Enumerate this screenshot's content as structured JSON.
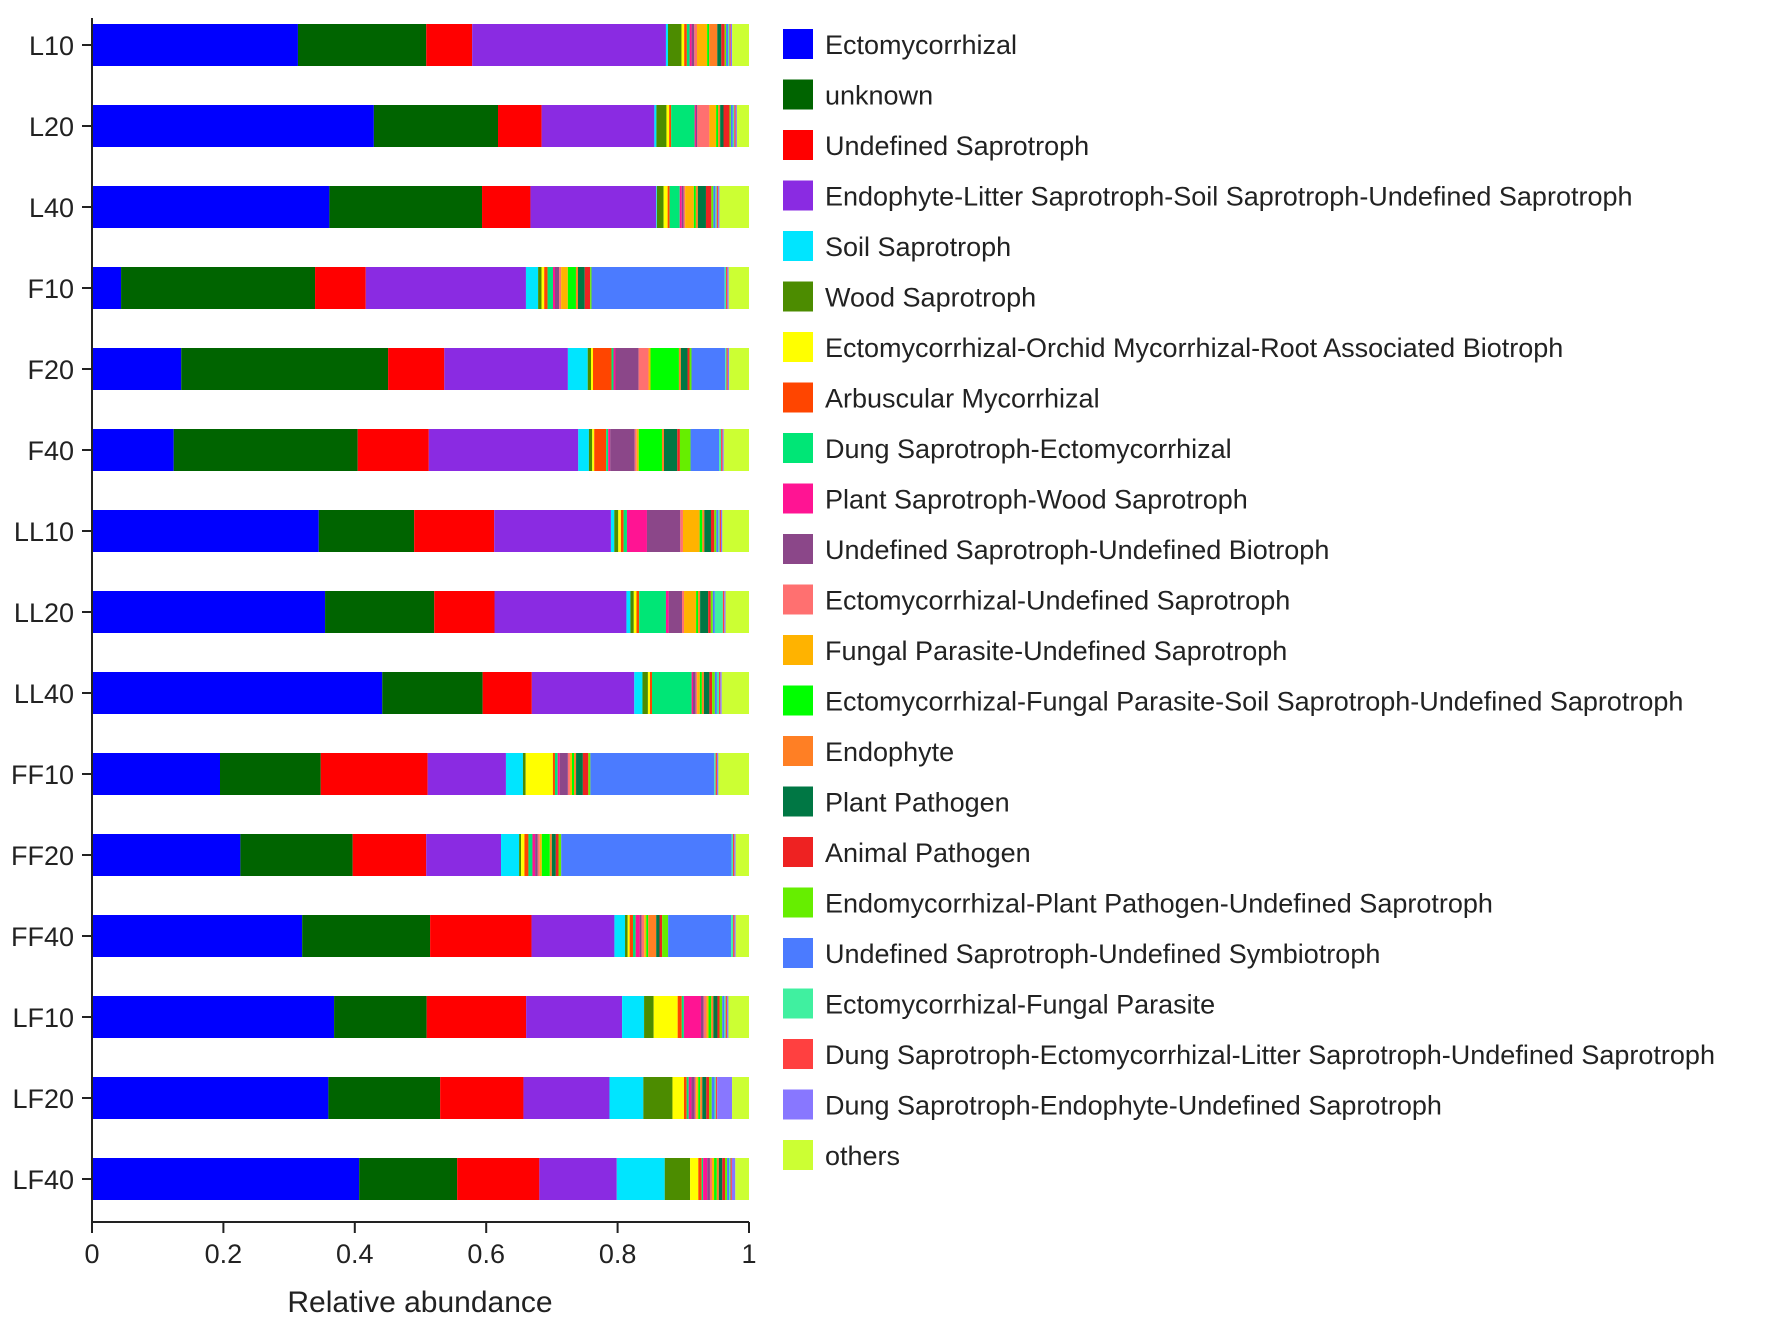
{
  "chart_data": {
    "type": "bar",
    "orientation": "horizontal",
    "stacked": true,
    "title": "",
    "xlabel": "Relative abundance",
    "ylabel": "",
    "xlim": [
      0,
      1
    ],
    "xticks": [
      0,
      0.2,
      0.4,
      0.6,
      0.8,
      1
    ],
    "xtick_labels": [
      "0",
      "0.2",
      "0.4",
      "0.6",
      "0.8",
      "1"
    ],
    "grid": false,
    "legend_position": "right",
    "categories": [
      "L10",
      "L20",
      "L40",
      "F10",
      "F20",
      "F40",
      "LL10",
      "LL20",
      "LL40",
      "FF10",
      "FF20",
      "FF40",
      "LF10",
      "LF20",
      "LF40"
    ],
    "series": [
      {
        "name": "Ectomycorrhizal",
        "color": "#0000ff",
        "values": [
          0.305,
          0.42,
          0.353,
          0.043,
          0.135,
          0.123,
          0.34,
          0.348,
          0.425,
          0.188,
          0.222,
          0.317,
          0.353,
          0.349,
          0.39
        ]
      },
      {
        "name": "unknown",
        "color": "#006400",
        "values": [
          0.19,
          0.185,
          0.227,
          0.287,
          0.313,
          0.277,
          0.143,
          0.163,
          0.147,
          0.148,
          0.168,
          0.193,
          0.135,
          0.165,
          0.143
        ]
      },
      {
        "name": "Undefined Saprotroph",
        "color": "#ff0000",
        "values": [
          0.068,
          0.065,
          0.072,
          0.075,
          0.085,
          0.107,
          0.12,
          0.09,
          0.072,
          0.157,
          0.11,
          0.153,
          0.145,
          0.123,
          0.12
        ]
      },
      {
        "name": "Endophyte-Litter Saprotroph-Soil Saprotroph-Undefined Saprotroph",
        "color": "#8a2be2",
        "values": [
          0.287,
          0.168,
          0.187,
          0.237,
          0.187,
          0.225,
          0.175,
          0.197,
          0.15,
          0.115,
          0.112,
          0.125,
          0.14,
          0.127,
          0.113
        ]
      },
      {
        "name": "Soil Saprotroph",
        "color": "#00e5ff",
        "values": [
          0.003,
          0.003,
          0.001,
          0.018,
          0.03,
          0.016,
          0.005,
          0.006,
          0.012,
          0.025,
          0.027,
          0.016,
          0.032,
          0.05,
          0.07
        ]
      },
      {
        "name": "Wood Saprotroph",
        "color": "#4c8c00",
        "values": [
          0.02,
          0.015,
          0.01,
          0.005,
          0.005,
          0.005,
          0.006,
          0.005,
          0.008,
          0.004,
          0.003,
          0.004,
          0.014,
          0.043,
          0.037
        ]
      },
      {
        "name": "Ectomycorrhizal-Orchid Mycorrhizal-Root Associated Biotroph",
        "color": "#ffff00",
        "values": [
          0.004,
          0.004,
          0.006,
          0.004,
          0.003,
          0.003,
          0.004,
          0.004,
          0.003,
          0.04,
          0.005,
          0.003,
          0.035,
          0.017,
          0.012
        ]
      },
      {
        "name": "Arbuscular Mycorrhizal",
        "color": "#ff4500",
        "values": [
          0.004,
          0.003,
          0.003,
          0.005,
          0.028,
          0.018,
          0.004,
          0.004,
          0.003,
          0.003,
          0.006,
          0.005,
          0.006,
          0.004,
          0.005
        ]
      },
      {
        "name": "Dung Saprotroph-Ectomycorrhizal",
        "color": "#00e676",
        "values": [
          0.004,
          0.035,
          0.015,
          0.008,
          0.003,
          0.003,
          0.005,
          0.04,
          0.058,
          0.004,
          0.006,
          0.004,
          0.003,
          0.003,
          0.002
        ]
      },
      {
        "name": "Plant Saprotroph-Wood Saprotroph",
        "color": "#ff1493",
        "values": [
          0.003,
          0.002,
          0.003,
          0.003,
          0.003,
          0.003,
          0.03,
          0.004,
          0.002,
          0.003,
          0.004,
          0.006,
          0.025,
          0.004,
          0.006
        ]
      },
      {
        "name": "Undefined Saprotroph-Undefined Biotroph",
        "color": "#8b4789",
        "values": [
          0.004,
          0.002,
          0.003,
          0.006,
          0.035,
          0.037,
          0.05,
          0.02,
          0.004,
          0.012,
          0.004,
          0.003,
          0.004,
          0.005,
          0.004
        ]
      },
      {
        "name": "Ectomycorrhizal-Undefined Saprotroph",
        "color": "#ff7070",
        "values": [
          0.004,
          0.018,
          0.002,
          0.003,
          0.015,
          0.003,
          0.004,
          0.003,
          0.002,
          0.003,
          0.003,
          0.004,
          0.004,
          0.002,
          0.003
        ]
      },
      {
        "name": "Fungal Parasite-Undefined Saprotroph",
        "color": "#ffb300",
        "values": [
          0.015,
          0.01,
          0.013,
          0.01,
          0.003,
          0.003,
          0.025,
          0.018,
          0.004,
          0.003,
          0.003,
          0.003,
          0.003,
          0.003,
          0.003
        ]
      },
      {
        "name": "Ectomycorrhizal-Fungal Parasite-Soil Saprotroph-Undefined Saprotroph",
        "color": "#00ff00",
        "values": [
          0.003,
          0.003,
          0.003,
          0.012,
          0.043,
          0.035,
          0.004,
          0.003,
          0.003,
          0.003,
          0.012,
          0.003,
          0.004,
          0.003,
          0.004
        ]
      },
      {
        "name": "Endophyte",
        "color": "#ff7f24",
        "values": [
          0.012,
          0.003,
          0.003,
          0.003,
          0.003,
          0.003,
          0.003,
          0.003,
          0.003,
          0.003,
          0.003,
          0.012,
          0.003,
          0.003,
          0.003
        ]
      },
      {
        "name": "Plant Pathogen",
        "color": "#007744",
        "values": [
          0.006,
          0.005,
          0.012,
          0.01,
          0.01,
          0.02,
          0.01,
          0.012,
          0.008,
          0.01,
          0.006,
          0.005,
          0.006,
          0.006,
          0.005
        ]
      },
      {
        "name": "Animal Pathogen",
        "color": "#ee2222",
        "values": [
          0.005,
          0.009,
          0.008,
          0.008,
          0.003,
          0.004,
          0.005,
          0.004,
          0.004,
          0.008,
          0.004,
          0.004,
          0.003,
          0.004,
          0.004
        ]
      },
      {
        "name": "Endomycorrhizal-Plant Pathogen-Undefined Saprotroph",
        "color": "#66ee00",
        "values": [
          0.002,
          0.002,
          0.003,
          0.002,
          0.003,
          0.016,
          0.003,
          0.003,
          0.004,
          0.003,
          0.004,
          0.009,
          0.004,
          0.004,
          0.003
        ]
      },
      {
        "name": "Undefined Saprotroph-Undefined Symbiotroph",
        "color": "#4b7bff",
        "values": [
          0.003,
          0.003,
          0.003,
          0.197,
          0.051,
          0.043,
          0.003,
          0.003,
          0.003,
          0.182,
          0.255,
          0.095,
          0.003,
          0.004,
          0.003
        ]
      },
      {
        "name": "Ectomycorrhizal-Fungal Parasite",
        "color": "#40f0a0",
        "values": [
          0.002,
          0.002,
          0.002,
          0.002,
          0.002,
          0.003,
          0.002,
          0.012,
          0.003,
          0.002,
          0.002,
          0.003,
          0.002,
          0.002,
          0.002
        ]
      },
      {
        "name": "Dung Saprotroph-Ectomycorrhizal-Litter Saprotroph-Undefined Saprotroph",
        "color": "#ff4040",
        "values": [
          0.002,
          0.002,
          0.002,
          0.002,
          0.002,
          0.002,
          0.002,
          0.002,
          0.002,
          0.002,
          0.002,
          0.002,
          0.002,
          0.002,
          0.002
        ]
      },
      {
        "name": "Dung Saprotroph-Endophyte-Undefined Saprotroph",
        "color": "#8877ff",
        "values": [
          0.002,
          0.002,
          0.002,
          0.002,
          0.002,
          0.002,
          0.002,
          0.002,
          0.002,
          0.002,
          0.002,
          0.002,
          0.002,
          0.022,
          0.005
        ]
      },
      {
        "name": "others",
        "color": "#ccff33",
        "values": [
          0.025,
          0.018,
          0.044,
          0.03,
          0.03,
          0.038,
          0.04,
          0.035,
          0.04,
          0.045,
          0.02,
          0.02,
          0.03,
          0.025,
          0.02
        ]
      }
    ]
  }
}
